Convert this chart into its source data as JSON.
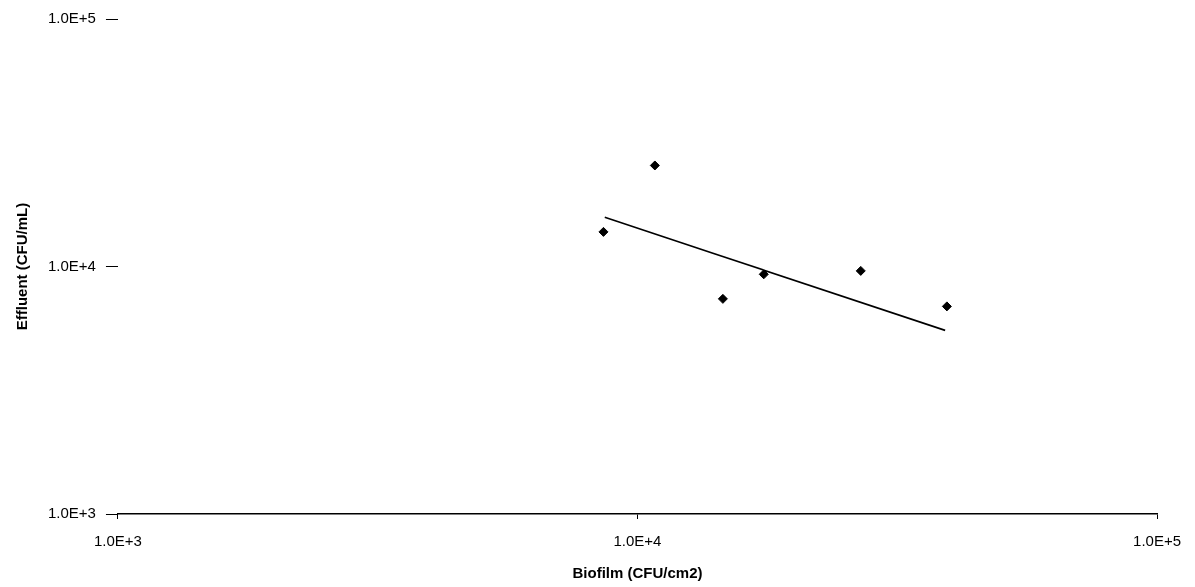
{
  "chart_data": {
    "type": "scatter",
    "xlabel": "Biofilm (CFU/cm2)",
    "ylabel": "Effluent (CFU/mL)",
    "log": "xy",
    "xlim": [
      1000,
      100000
    ],
    "ylim": [
      1000,
      100000
    ],
    "xticks": [
      {
        "value": 1000,
        "label": "1.0E+3"
      },
      {
        "value": 10000,
        "label": "1.0E+4"
      },
      {
        "value": 100000,
        "label": "1.0E+5"
      }
    ],
    "yticks": [
      {
        "value": 1000,
        "label": "1.0E+3"
      },
      {
        "value": 10000,
        "label": "1.0E+4"
      },
      {
        "value": 100000,
        "label": "1.0E+5"
      }
    ],
    "grid": false,
    "legend": false,
    "series": [
      {
        "color": "#000000",
        "marker": "diamond",
        "x": [
          8600,
          10800,
          14600,
          17500,
          26900,
          39400
        ],
        "values": [
          13800,
          25600,
          7400,
          9300,
          9600,
          6900
        ]
      },
      {
        "type": "line",
        "color": "#000000",
        "marker": "none",
        "x": [
          8650,
          39100
        ],
        "values": [
          15800,
          5520
        ]
      }
    ]
  }
}
